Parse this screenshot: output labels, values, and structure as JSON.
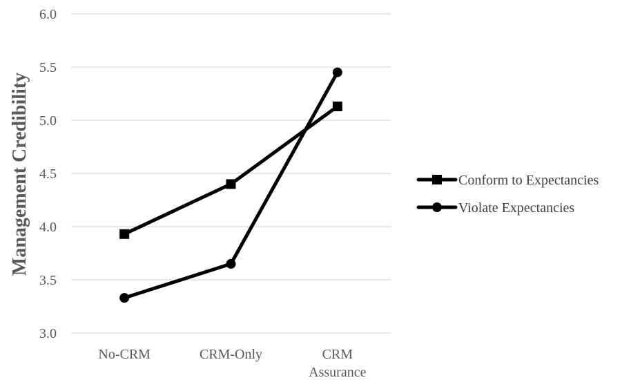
{
  "chart_data": {
    "type": "line",
    "title": "",
    "xlabel": "",
    "ylabel": "Management Credibility",
    "categories": [
      [
        "No-CRM"
      ],
      [
        "CRM-Only"
      ],
      [
        "CRM",
        "Assurance"
      ]
    ],
    "ylim": [
      3.0,
      6.0
    ],
    "yticks": [
      "3.0",
      "3.5",
      "4.0",
      "4.5",
      "5.0",
      "5.5",
      "6.0"
    ],
    "grid": true,
    "legend_position": "right",
    "series": [
      {
        "name": "Conform to Expectancies",
        "marker": "square",
        "color": "#000000",
        "values": [
          3.93,
          4.4,
          5.13
        ]
      },
      {
        "name": "Violate Expectancies",
        "marker": "circle",
        "color": "#000000",
        "values": [
          3.33,
          3.65,
          5.45
        ]
      }
    ],
    "grid_color": "#d9d9d9",
    "text_color": "#595959"
  }
}
